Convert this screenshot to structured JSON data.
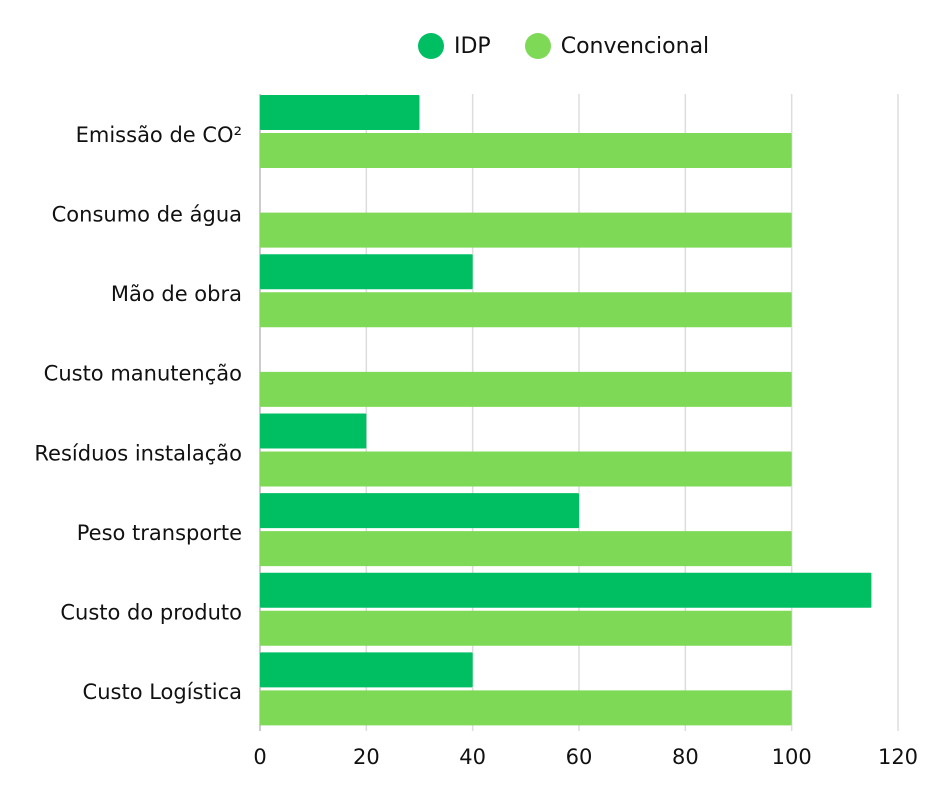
{
  "chart_data": {
    "type": "bar",
    "orientation": "horizontal",
    "title": "",
    "xlabel": "",
    "ylabel": "",
    "categories": [
      "Emissão de CO²",
      "Consumo de água",
      "Mão de obra",
      "Custo manutenção",
      "Resíduos instalação",
      "Peso transporte",
      "Custo do produto",
      "Custo Logística"
    ],
    "series": [
      {
        "name": "IDP",
        "color": "#00BF63",
        "values": [
          30,
          0,
          40,
          0,
          20,
          60,
          115,
          40
        ]
      },
      {
        "name": "Convencional",
        "color": "#7ED957",
        "values": [
          100,
          100,
          100,
          100,
          100,
          100,
          100,
          100
        ]
      }
    ],
    "xlim": [
      0,
      120
    ],
    "xticks": [
      0,
      20,
      40,
      60,
      80,
      100,
      120
    ],
    "grid": true,
    "legend_position": "top-center"
  }
}
